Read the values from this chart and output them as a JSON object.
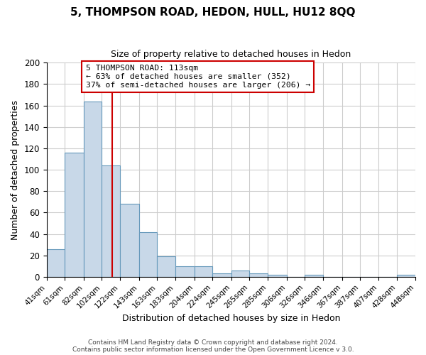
{
  "title": "5, THOMPSON ROAD, HEDON, HULL, HU12 8QQ",
  "subtitle": "Size of property relative to detached houses in Hedon",
  "xlabel": "Distribution of detached houses by size in Hedon",
  "ylabel": "Number of detached properties",
  "bar_values": [
    26,
    116,
    164,
    104,
    68,
    42,
    19,
    10,
    10,
    3,
    6,
    3,
    2,
    0,
    2,
    0,
    0,
    0,
    0,
    2
  ],
  "bin_edges": [
    41,
    61,
    82,
    102,
    122,
    143,
    163,
    183,
    204,
    224,
    245,
    265,
    285,
    306,
    326,
    346,
    367,
    387,
    407,
    428,
    448
  ],
  "tick_labels": [
    "41sqm",
    "61sqm",
    "82sqm",
    "102sqm",
    "122sqm",
    "143sqm",
    "163sqm",
    "183sqm",
    "204sqm",
    "224sqm",
    "245sqm",
    "265sqm",
    "285sqm",
    "306sqm",
    "326sqm",
    "346sqm",
    "367sqm",
    "387sqm",
    "407sqm",
    "428sqm",
    "448sqm"
  ],
  "bar_color": "#c8d8e8",
  "bar_edge_color": "#6699bb",
  "vline_x": 113,
  "vline_color": "#cc0000",
  "ylim": [
    0,
    200
  ],
  "yticks": [
    0,
    20,
    40,
    60,
    80,
    100,
    120,
    140,
    160,
    180,
    200
  ],
  "annotation_title": "5 THOMPSON ROAD: 113sqm",
  "annotation_line1": "← 63% of detached houses are smaller (352)",
  "annotation_line2": "37% of semi-detached houses are larger (206) →",
  "annotation_box_color": "#ffffff",
  "annotation_box_edge": "#cc0000",
  "footer1": "Contains HM Land Registry data © Crown copyright and database right 2024.",
  "footer2": "Contains public sector information licensed under the Open Government Licence v 3.0.",
  "background_color": "#ffffff",
  "grid_color": "#cccccc"
}
